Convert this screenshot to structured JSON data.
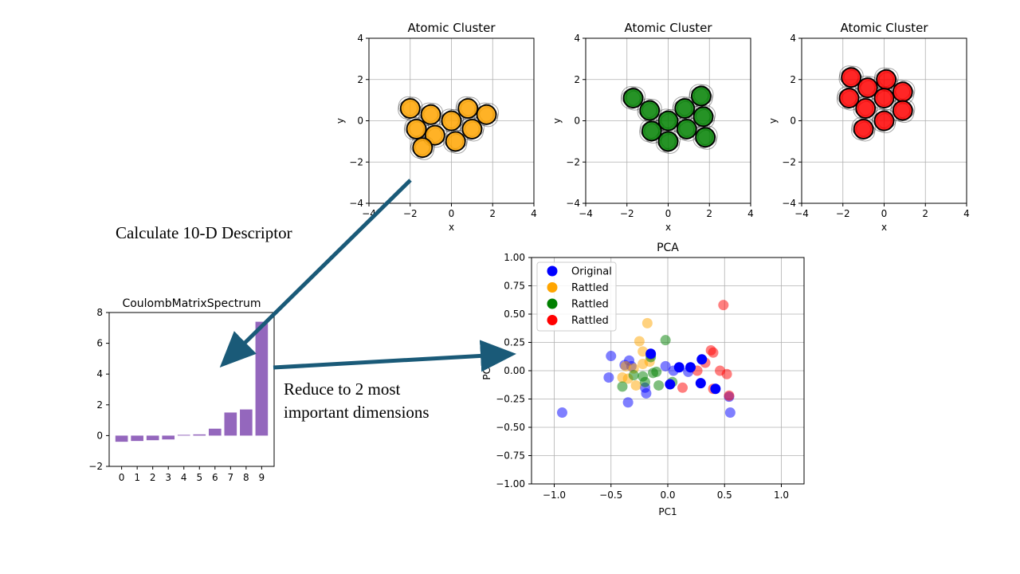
{
  "annotations": {
    "calc_label": "Calculate 10-D Descriptor",
    "reduce_label_line1": "Reduce to 2 most",
    "reduce_label_line2": "important dimensions"
  },
  "colors": {
    "orange": "#FFA500",
    "green": "#008000",
    "red": "#FF0000",
    "blue": "#0000FF",
    "purple": "#9467BD",
    "arrow": "#1A5A78"
  },
  "chart_data": [
    {
      "type": "scatter",
      "title": "Atomic Cluster",
      "xlabel": "x",
      "ylabel": "y",
      "xlim": [
        -4,
        4
      ],
      "ylim": [
        -4,
        4
      ],
      "ticks": [
        -4,
        -2,
        0,
        2,
        4
      ],
      "grid": true,
      "color": "#FFA500",
      "points": [
        [
          -2.0,
          0.6
        ],
        [
          -1.0,
          0.3
        ],
        [
          0.0,
          0.0
        ],
        [
          0.8,
          0.6
        ],
        [
          1.7,
          0.3
        ],
        [
          -1.7,
          -0.4
        ],
        [
          -0.8,
          -0.7
        ],
        [
          0.2,
          -1.0
        ],
        [
          1.0,
          -0.4
        ],
        [
          -1.4,
          -1.3
        ]
      ]
    },
    {
      "type": "scatter",
      "title": "Atomic Cluster",
      "xlabel": "x",
      "ylabel": "y",
      "xlim": [
        -4,
        4
      ],
      "ylim": [
        -4,
        4
      ],
      "ticks": [
        -4,
        -2,
        0,
        2,
        4
      ],
      "grid": true,
      "color": "#008000",
      "points": [
        [
          -1.7,
          1.1
        ],
        [
          -0.9,
          0.5
        ],
        [
          0.0,
          0.0
        ],
        [
          0.8,
          0.6
        ],
        [
          1.6,
          1.2
        ],
        [
          -0.8,
          -0.5
        ],
        [
          0.0,
          -1.0
        ],
        [
          0.9,
          -0.4
        ],
        [
          1.8,
          -0.8
        ],
        [
          1.7,
          0.2
        ]
      ]
    },
    {
      "type": "scatter",
      "title": "Atomic Cluster",
      "xlabel": "x",
      "ylabel": "y",
      "xlim": [
        -4,
        4
      ],
      "ylim": [
        -4,
        4
      ],
      "ticks": [
        -4,
        -2,
        0,
        2,
        4
      ],
      "grid": true,
      "color": "#FF0000",
      "points": [
        [
          -1.6,
          2.1
        ],
        [
          -0.8,
          1.6
        ],
        [
          0.1,
          2.0
        ],
        [
          -1.7,
          1.1
        ],
        [
          -0.9,
          0.6
        ],
        [
          0.0,
          1.1
        ],
        [
          0.9,
          1.4
        ],
        [
          0.0,
          0.0
        ],
        [
          0.9,
          0.5
        ],
        [
          -1.0,
          -0.4
        ]
      ]
    },
    {
      "type": "bar",
      "title": "CoulombMatrixSpectrum",
      "categories": [
        "0",
        "1",
        "2",
        "3",
        "4",
        "5",
        "6",
        "7",
        "8",
        "9"
      ],
      "values": [
        -0.4,
        -0.35,
        -0.3,
        -0.25,
        0.05,
        0.08,
        0.45,
        1.5,
        1.7,
        7.4
      ],
      "ylim": [
        -2,
        8
      ],
      "yticks": [
        -2,
        0,
        2,
        4,
        6,
        8
      ],
      "color": "#9467BD"
    },
    {
      "type": "scatter",
      "title": "PCA",
      "xlabel": "PC1",
      "ylabel": "PC2",
      "xlim": [
        -1.2,
        1.2
      ],
      "ylim": [
        -1.0,
        1.0
      ],
      "xticks": [
        -1.0,
        -0.5,
        0.0,
        0.5,
        1.0
      ],
      "yticks": [
        -1.0,
        -0.75,
        -0.5,
        -0.25,
        0.0,
        0.25,
        0.5,
        0.75,
        1.0
      ],
      "grid": true,
      "legend_position": "top-left",
      "series": [
        {
          "name": "Original",
          "color": "#0000FF",
          "alpha": 1.0,
          "points": [
            [
              -0.15,
              0.15
            ],
            [
              0.1,
              0.03
            ],
            [
              0.2,
              0.03
            ],
            [
              0.3,
              0.1
            ],
            [
              0.29,
              -0.11
            ],
            [
              0.42,
              -0.16
            ],
            [
              0.02,
              -0.12
            ]
          ]
        },
        {
          "name": "Rattled",
          "color": "#FFA500",
          "alpha": 0.5,
          "points": [
            [
              -0.18,
              0.42
            ],
            [
              -0.25,
              0.26
            ],
            [
              -0.22,
              0.17
            ],
            [
              -0.37,
              0.04
            ],
            [
              -0.3,
              0.02
            ],
            [
              -0.22,
              0.06
            ],
            [
              -0.35,
              -0.07
            ],
            [
              -0.4,
              -0.06
            ],
            [
              -0.28,
              -0.13
            ],
            [
              -0.16,
              0.08
            ]
          ]
        },
        {
          "name": "Rattled",
          "color": "#008000",
          "alpha": 0.5,
          "points": [
            [
              -0.02,
              0.27
            ],
            [
              -0.15,
              0.12
            ],
            [
              -0.13,
              -0.02
            ],
            [
              -0.22,
              -0.05
            ],
            [
              -0.3,
              -0.04
            ],
            [
              -0.2,
              -0.1
            ],
            [
              -0.08,
              -0.13
            ],
            [
              0.04,
              -0.1
            ],
            [
              -0.4,
              -0.14
            ],
            [
              -0.1,
              -0.01
            ]
          ]
        },
        {
          "name": "Rattled",
          "color": "#FF0000",
          "alpha": 0.5,
          "points": [
            [
              0.49,
              0.58
            ],
            [
              0.38,
              0.18
            ],
            [
              0.4,
              0.16
            ],
            [
              0.33,
              0.07
            ],
            [
              0.26,
              0.0
            ],
            [
              0.46,
              0.0
            ],
            [
              0.52,
              -0.03
            ],
            [
              0.4,
              -0.16
            ],
            [
              0.54,
              -0.22
            ],
            [
              0.13,
              -0.15
            ]
          ]
        },
        {
          "name": "",
          "color": "#0000FF",
          "alpha": 0.5,
          "points": [
            [
              -0.5,
              0.13
            ],
            [
              -0.52,
              -0.06
            ],
            [
              -0.93,
              -0.37
            ],
            [
              -0.34,
              0.09
            ],
            [
              -0.32,
              0.04
            ],
            [
              -0.35,
              -0.28
            ],
            [
              -0.19,
              -0.2
            ],
            [
              -0.2,
              -0.15
            ],
            [
              -0.02,
              0.04
            ],
            [
              0.05,
              0.0
            ],
            [
              0.18,
              -0.01
            ],
            [
              0.55,
              -0.37
            ],
            [
              0.54,
              -0.23
            ],
            [
              -0.38,
              0.05
            ],
            [
              -0.15,
              0.14
            ]
          ]
        }
      ]
    }
  ]
}
